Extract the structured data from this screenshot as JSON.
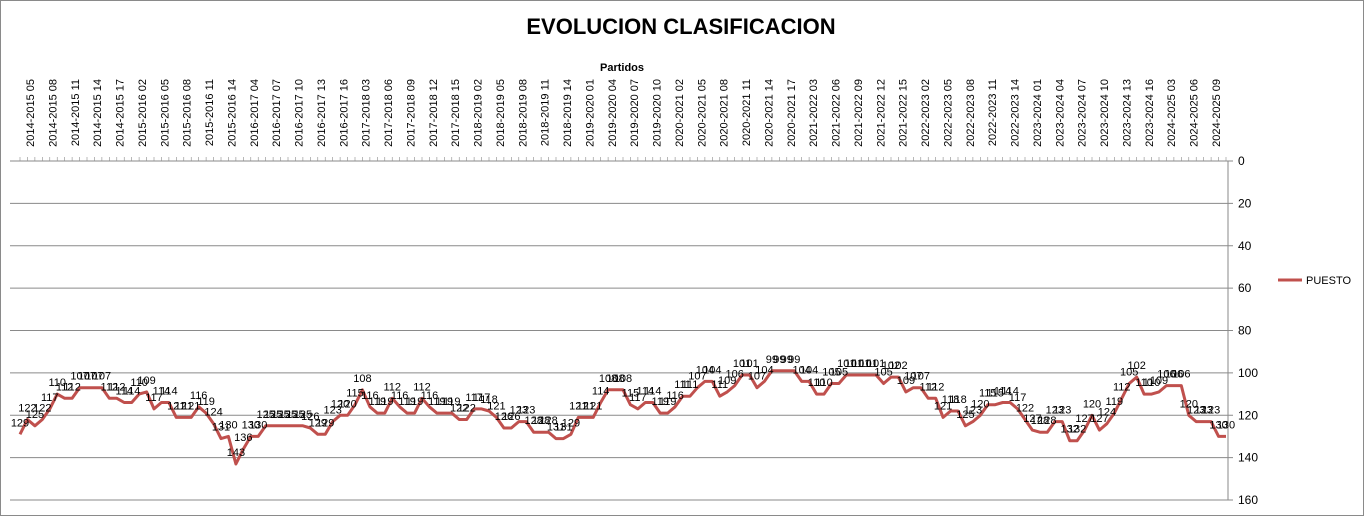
{
  "chart_data": {
    "type": "line",
    "title": "EVOLUCION CLASIFICACION",
    "xlabel": "Partidos",
    "ylabel": "",
    "ylim": [
      0,
      160
    ],
    "y_reversed": true,
    "x_axis_position": "top",
    "y_axis_position": "right",
    "yticks": [
      0,
      20,
      40,
      60,
      80,
      100,
      120,
      140,
      160
    ],
    "grid": "horizontal",
    "legend": "right",
    "x_tick_labels": [
      "2014-2015 05",
      "2014-2015 08",
      "2014-2015 11",
      "2014-2015 14",
      "2014-2015 17",
      "2015-2016 02",
      "2015-2016 05",
      "2015-2016 08",
      "2015-2016 11",
      "2015-2016 14",
      "2016-2017 04",
      "2016-2017 07",
      "2016-2017 10",
      "2016-2017 13",
      "2016-2017 16",
      "2017-2018 03",
      "2017-2018 06",
      "2017-2018 09",
      "2017-2018 12",
      "2017-2018 15",
      "2018-2019 02",
      "2018-2019 05",
      "2018-2019 08",
      "2018-2019 11",
      "2018-2019 14",
      "2019-2020 01",
      "2019-2020 04",
      "2019-2020 07",
      "2019-2020 10",
      "2020-2021 02",
      "2020-2021 05",
      "2020-2021 08",
      "2020-2021 11",
      "2020-2021 14",
      "2020-2021 17",
      "2021-2022 03",
      "2021-2022 06",
      "2021-2022 09",
      "2021-2022 12",
      "2021-2022 15",
      "2022-2023 02",
      "2022-2023 05",
      "2022-2023 08",
      "2022-2023 11",
      "2022-2023 14",
      "2023-2024 01",
      "2023-2024 04",
      "2023-2024 07",
      "2023-2024 10",
      "2023-2024 13",
      "2023-2024 16",
      "2024-2025 03",
      "2024-2025 06",
      "2024-2025 09"
    ],
    "series": [
      {
        "name": "PUESTO",
        "color": "#C0504D",
        "values": [
          129,
          122,
          125,
          122,
          117,
          110,
          112,
          112,
          107,
          107,
          107,
          107,
          112,
          112,
          114,
          114,
          110,
          109,
          117,
          114,
          114,
          121,
          121,
          121,
          116,
          119,
          124,
          131,
          130,
          143,
          136,
          130,
          130,
          125,
          125,
          125,
          125,
          125,
          125,
          126,
          129,
          129,
          123,
          120,
          120,
          115,
          108,
          116,
          119,
          119,
          112,
          116,
          119,
          119,
          112,
          116,
          119,
          119,
          119,
          122,
          122,
          117,
          117,
          118,
          121,
          126,
          126,
          123,
          123,
          128,
          128,
          128,
          131,
          131,
          129,
          121,
          121,
          121,
          114,
          108,
          108,
          108,
          115,
          117,
          114,
          114,
          119,
          119,
          116,
          111,
          111,
          107,
          104,
          104,
          111,
          109,
          106,
          101,
          101,
          107,
          104,
          99,
          99,
          99,
          99,
          104,
          104,
          110,
          110,
          105,
          105,
          101,
          101,
          101,
          101,
          101,
          105,
          102,
          102,
          109,
          107,
          107,
          112,
          112,
          121,
          118,
          118,
          125,
          123,
          120,
          115,
          115,
          114,
          114,
          117,
          122,
          127,
          128,
          128,
          123,
          123,
          132,
          132,
          127,
          120,
          127,
          124,
          119,
          112,
          105,
          102,
          110,
          110,
          109,
          106,
          106,
          106,
          120,
          123,
          123,
          123,
          130,
          130
        ]
      }
    ]
  }
}
